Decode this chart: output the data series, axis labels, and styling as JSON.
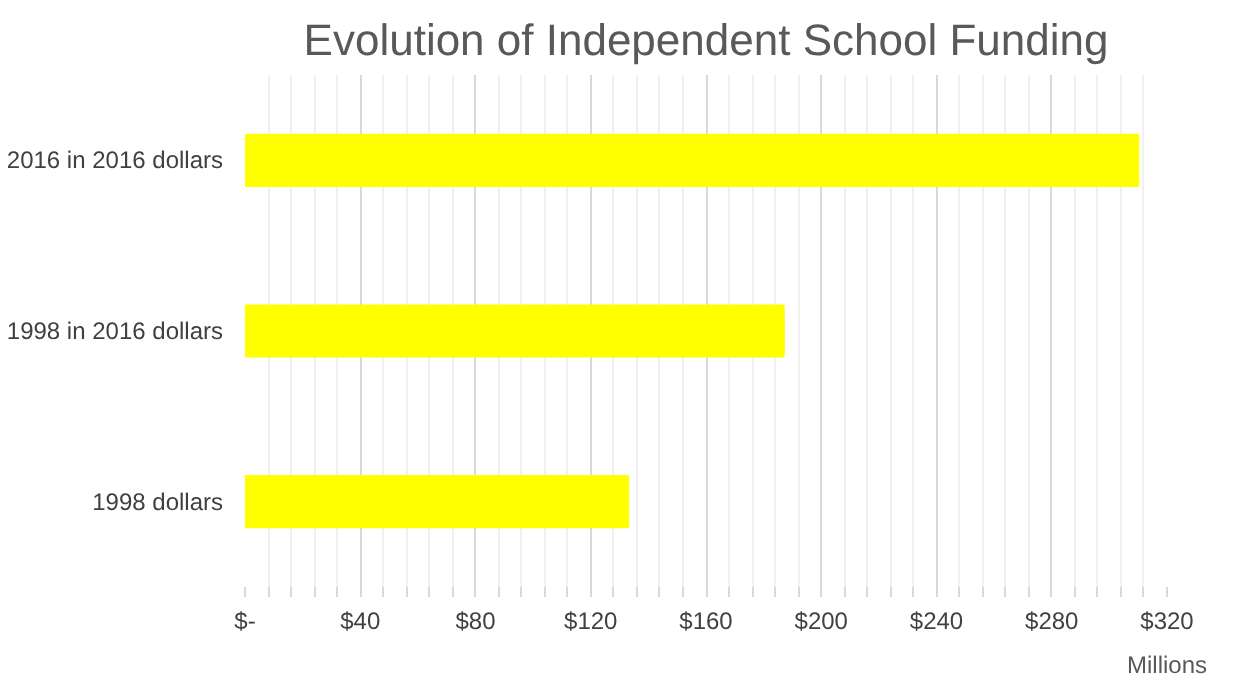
{
  "chart_data": {
    "type": "bar",
    "orientation": "horizontal",
    "title": "Evolution of Independent School Funding",
    "xlabel": "Millions",
    "categories": [
      "2016 in 2016 dollars",
      "1998 in 2016 dollars",
      "1998 dollars"
    ],
    "values": [
      310,
      187,
      133
    ],
    "color": "#ffff00",
    "xlim": [
      0,
      320
    ],
    "xticks": [
      {
        "value": 0,
        "label": "$-"
      },
      {
        "value": 40,
        "label": "$40"
      },
      {
        "value": 80,
        "label": "$80"
      },
      {
        "value": 120,
        "label": "$120"
      },
      {
        "value": 160,
        "label": "$160"
      },
      {
        "value": 200,
        "label": "$200"
      },
      {
        "value": 240,
        "label": "$240"
      },
      {
        "value": 280,
        "label": "$280"
      },
      {
        "value": 320,
        "label": "$320"
      }
    ],
    "grid": "x"
  }
}
